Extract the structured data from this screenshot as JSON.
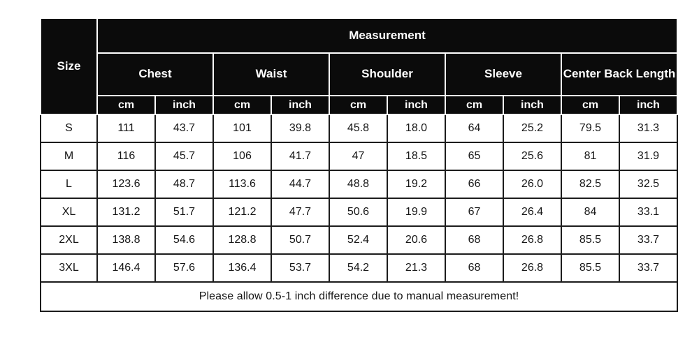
{
  "chart_data": {
    "type": "table",
    "title": "Measurement",
    "size_label": "Size",
    "column_groups": [
      {
        "label": "Chest"
      },
      {
        "label": "Waist"
      },
      {
        "label": "Shoulder"
      },
      {
        "label": "Sleeve"
      },
      {
        "label": "Center Back Length"
      }
    ],
    "unit_labels": [
      "cm",
      "inch"
    ],
    "rows": [
      {
        "size": "S",
        "values": [
          "111",
          "43.7",
          "101",
          "39.8",
          "45.8",
          "18.0",
          "64",
          "25.2",
          "79.5",
          "31.3"
        ]
      },
      {
        "size": "M",
        "values": [
          "116",
          "45.7",
          "106",
          "41.7",
          "47",
          "18.5",
          "65",
          "25.6",
          "81",
          "31.9"
        ]
      },
      {
        "size": "L",
        "values": [
          "123.6",
          "48.7",
          "113.6",
          "44.7",
          "48.8",
          "19.2",
          "66",
          "26.0",
          "82.5",
          "32.5"
        ]
      },
      {
        "size": "XL",
        "values": [
          "131.2",
          "51.7",
          "121.2",
          "47.7",
          "50.6",
          "19.9",
          "67",
          "26.4",
          "84",
          "33.1"
        ]
      },
      {
        "size": "2XL",
        "values": [
          "138.8",
          "54.6",
          "128.8",
          "50.7",
          "52.4",
          "20.6",
          "68",
          "26.8",
          "85.5",
          "33.7"
        ]
      },
      {
        "size": "3XL",
        "values": [
          "146.4",
          "57.6",
          "136.4",
          "53.7",
          "54.2",
          "21.3",
          "68",
          "26.8",
          "85.5",
          "33.7"
        ]
      }
    ],
    "note": "Please allow 0.5-1 inch difference due to manual measurement!"
  },
  "colors": {
    "header_bg": "#0b0b0b",
    "header_text": "#ffffff",
    "cell_bg": "#ffffff",
    "cell_text": "#161616",
    "grid_border": "#1c1c1c",
    "header_gridline": "#ffffff"
  }
}
